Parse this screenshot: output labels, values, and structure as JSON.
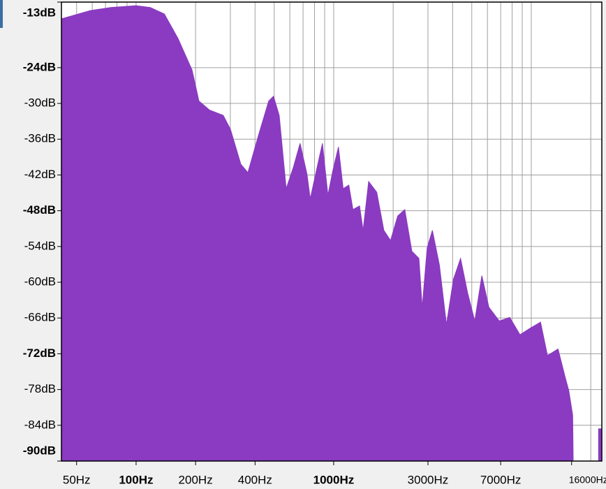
{
  "chart_data": {
    "type": "area",
    "xscale": "log",
    "grid": true,
    "x": [
      42,
      59,
      75,
      100,
      118,
      139,
      163,
      192,
      208,
      235,
      276,
      300,
      339,
      368,
      415,
      469,
      496,
      530,
      575,
      624,
      676,
      733,
      761,
      831,
      877,
      935,
      990,
      1057,
      1117,
      1193,
      1252,
      1352,
      1409,
      1503,
      1652,
      1795,
      1940,
      2108,
      2290,
      2487,
      2700,
      2806,
      2973,
      3159,
      3428,
      3722,
      4038,
      4387,
      4764,
      5176,
      5621,
      6103,
      6885,
      7784,
      8766,
      9890,
      11140,
      12080,
      13660,
      14810,
      15490,
      16200,
      16300,
      20000,
      21900,
      22700
    ],
    "series": [
      {
        "color": "#8a3bc1",
        "values": [
          -15.8,
          -14.4,
          -13.9,
          -13.6,
          -13.9,
          -15.0,
          -19.1,
          -24.4,
          -29.6,
          -31.1,
          -32.0,
          -34.3,
          -40.2,
          -41.6,
          -35.5,
          -29.6,
          -28.8,
          -32.0,
          -44.3,
          -40.8,
          -36.7,
          -41.9,
          -46.0,
          -40.2,
          -36.7,
          -45.4,
          -41.3,
          -37.3,
          -44.3,
          -43.7,
          -47.8,
          -47.2,
          -51.3,
          -43.1,
          -44.9,
          -51.3,
          -53.0,
          -48.9,
          -47.8,
          -54.8,
          -56.0,
          -64.2,
          -54.2,
          -51.3,
          -57.1,
          -67.1,
          -59.5,
          -56.0,
          -61.8,
          -66.5,
          -58.9,
          -64.2,
          -66.5,
          -65.9,
          -68.8,
          -67.7,
          -66.7,
          -72.3,
          -71.2,
          -75.8,
          -78.2,
          -82.3,
          -90,
          null,
          -84.6,
          -84.6
        ]
      }
    ],
    "xlim": [
      41.9,
      22750
    ],
    "ylim": [
      -90,
      -13
    ],
    "xticks": [
      {
        "value": 50,
        "label": "50Hz"
      },
      {
        "value": 100,
        "label": "100Hz",
        "bold": true
      },
      {
        "value": 200,
        "label": "200Hz"
      },
      {
        "value": 400,
        "label": "400Hz"
      },
      {
        "value": 1000,
        "label": "1000Hz",
        "bold": true
      },
      {
        "value": 3000,
        "label": "3000Hz"
      },
      {
        "value": 7000,
        "label": "7000Hz"
      },
      {
        "value": 16000,
        "label": "16000Hz"
      }
    ],
    "xgrid": [
      50,
      60,
      70,
      80,
      90,
      100,
      200,
      300,
      400,
      500,
      600,
      700,
      800,
      900,
      1000,
      2000,
      3000,
      4000,
      5000,
      6000,
      7000,
      8000,
      9000,
      10000,
      20000
    ],
    "yticks": [
      {
        "value": -13,
        "label": "-13dB",
        "bold": true
      },
      {
        "value": -24,
        "label": "-24dB",
        "bold": true
      },
      {
        "value": -30,
        "label": "-30dB"
      },
      {
        "value": -36,
        "label": "-36dB"
      },
      {
        "value": -42,
        "label": "-42dB"
      },
      {
        "value": -48,
        "label": "-48dB",
        "bold": true
      },
      {
        "value": -54,
        "label": "-54dB"
      },
      {
        "value": -60,
        "label": "-60dB"
      },
      {
        "value": -66,
        "label": "-66dB"
      },
      {
        "value": -72,
        "label": "-72dB",
        "bold": true
      },
      {
        "value": -78,
        "label": "-78dB"
      },
      {
        "value": -84,
        "label": "-84dB"
      },
      {
        "value": -90,
        "label": "-90dB",
        "bold": true
      }
    ]
  }
}
